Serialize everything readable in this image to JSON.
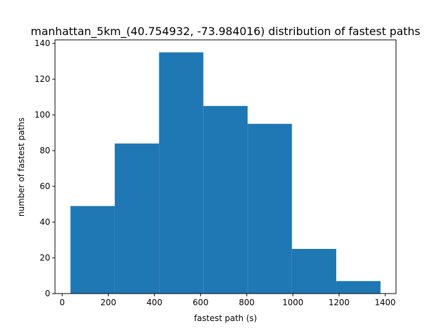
{
  "chart_data": {
    "type": "bar",
    "title": "manhattan_5km_(40.754932, -73.984016) distribution of fastest paths",
    "xlabel": "fastest path (s)",
    "ylabel": "number of fastest paths",
    "bin_edges": [
      36,
      228,
      420,
      612,
      804,
      996,
      1188,
      1380
    ],
    "values": [
      49,
      84,
      135,
      105,
      95,
      25,
      7
    ],
    "xlim": [
      -31,
      1447
    ],
    "ylim": [
      0,
      142
    ],
    "xticks": [
      0,
      200,
      400,
      600,
      800,
      1000,
      1200,
      1400
    ],
    "yticks": [
      0,
      20,
      40,
      60,
      80,
      100,
      120,
      140
    ],
    "bar_color": "#1f77b4",
    "grid": false
  }
}
